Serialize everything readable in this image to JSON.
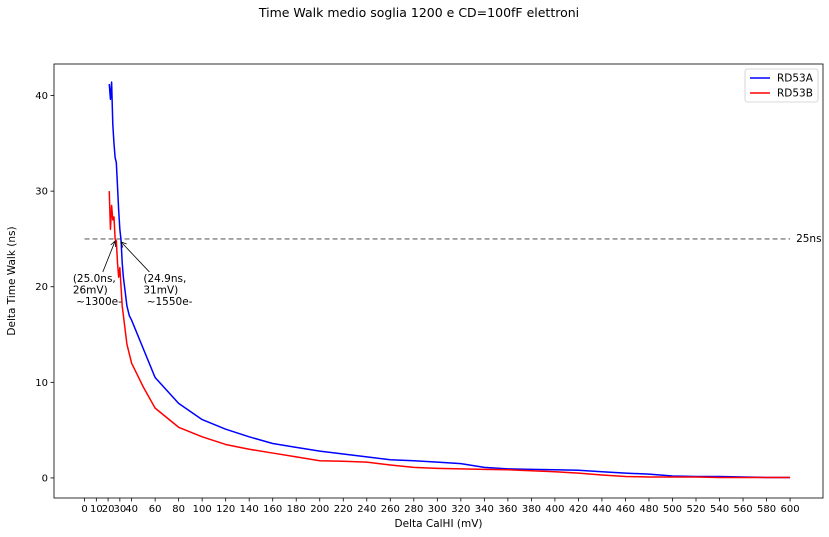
{
  "chart_data": {
    "type": "line",
    "title": "Time Walk medio soglia 1200 e CD=100fF elettroni",
    "xlabel": "Delta CalHI (mV)",
    "ylabel": "Delta Time Walk (ns)",
    "xlim": [
      -26,
      628
    ],
    "ylim": [
      -2.1,
      43.3
    ],
    "x_ticks": [
      0,
      10,
      20,
      30,
      40,
      60,
      80,
      100,
      120,
      140,
      160,
      180,
      200,
      220,
      240,
      260,
      280,
      300,
      320,
      340,
      360,
      380,
      400,
      420,
      440,
      460,
      480,
      500,
      520,
      540,
      560,
      580,
      600
    ],
    "x_tick_labels": [
      "0",
      "10",
      "20",
      "30",
      "40",
      "60",
      "80",
      "100",
      "120",
      "140",
      "160",
      "180",
      "200",
      "220",
      "240",
      "260",
      "280",
      "300",
      "320",
      "340",
      "360",
      "380",
      "400",
      "420",
      "440",
      "460",
      "480",
      "500",
      "520",
      "540",
      "560",
      "580",
      "600"
    ],
    "y_ticks": [
      0,
      10,
      20,
      30,
      40
    ],
    "y_tick_labels": [
      "0",
      "10",
      "20",
      "30",
      "40"
    ],
    "grid": false,
    "legend_position": "top-right",
    "colors": {
      "RD53A": "#0000ff",
      "RD53B": "#ff0000",
      "reference": "#808080"
    },
    "series": [
      {
        "name": "RD53A",
        "x": [
          21,
          22,
          23,
          24,
          25,
          26,
          27,
          28,
          29,
          30,
          31,
          32,
          33,
          34,
          35,
          36,
          38,
          40,
          50,
          60,
          80,
          100,
          120,
          140,
          160,
          180,
          200,
          220,
          240,
          260,
          280,
          300,
          320,
          340,
          360,
          380,
          400,
          420,
          440,
          460,
          480,
          500,
          520,
          540,
          560,
          580,
          600
        ],
        "y": [
          41.2,
          39.6,
          41.4,
          37.0,
          35.0,
          33.5,
          33.0,
          30.5,
          28.0,
          26.0,
          24.9,
          22.5,
          21.0,
          20.0,
          19.0,
          18.0,
          17.0,
          16.5,
          13.5,
          10.5,
          7.8,
          6.1,
          5.1,
          4.3,
          3.6,
          3.2,
          2.8,
          2.5,
          2.2,
          1.9,
          1.8,
          1.65,
          1.5,
          1.1,
          0.95,
          0.9,
          0.85,
          0.8,
          0.65,
          0.5,
          0.4,
          0.2,
          0.15,
          0.15,
          0.1,
          0.05,
          0.05
        ]
      },
      {
        "name": "RD53B",
        "x": [
          21,
          22,
          23,
          24,
          25,
          26,
          27,
          28,
          29,
          30,
          32,
          34,
          36,
          38,
          40,
          50,
          60,
          80,
          100,
          120,
          140,
          160,
          180,
          200,
          220,
          240,
          260,
          280,
          300,
          320,
          340,
          360,
          380,
          400,
          420,
          440,
          460,
          480,
          500,
          520,
          540,
          560,
          580,
          600
        ],
        "y": [
          30.0,
          26.0,
          28.5,
          27.0,
          27.3,
          25.0,
          24.8,
          22.5,
          21.0,
          22.0,
          18.0,
          16.0,
          14.0,
          13.0,
          12.0,
          9.5,
          7.3,
          5.3,
          4.3,
          3.5,
          3.0,
          2.6,
          2.2,
          1.8,
          1.75,
          1.65,
          1.35,
          1.1,
          1.0,
          0.95,
          0.9,
          0.85,
          0.75,
          0.65,
          0.5,
          0.3,
          0.15,
          0.1,
          0.1,
          0.1,
          0.05,
          0.05,
          0.05,
          0.05
        ]
      }
    ],
    "reference_line": {
      "y": 25,
      "x_range": [
        0,
        600
      ],
      "label": "25ns"
    },
    "annotations": [
      {
        "lines": [
          "(25.0ns,",
          "26mV)",
          " ~1300e-"
        ],
        "point": [
          26,
          25.0
        ],
        "text_at": [
          -10,
          20.5
        ]
      },
      {
        "lines": [
          "(24.9ns,",
          "31mV)",
          " ~1550e-"
        ],
        "point": [
          31,
          24.9
        ],
        "text_at": [
          50,
          20.5
        ]
      }
    ]
  }
}
